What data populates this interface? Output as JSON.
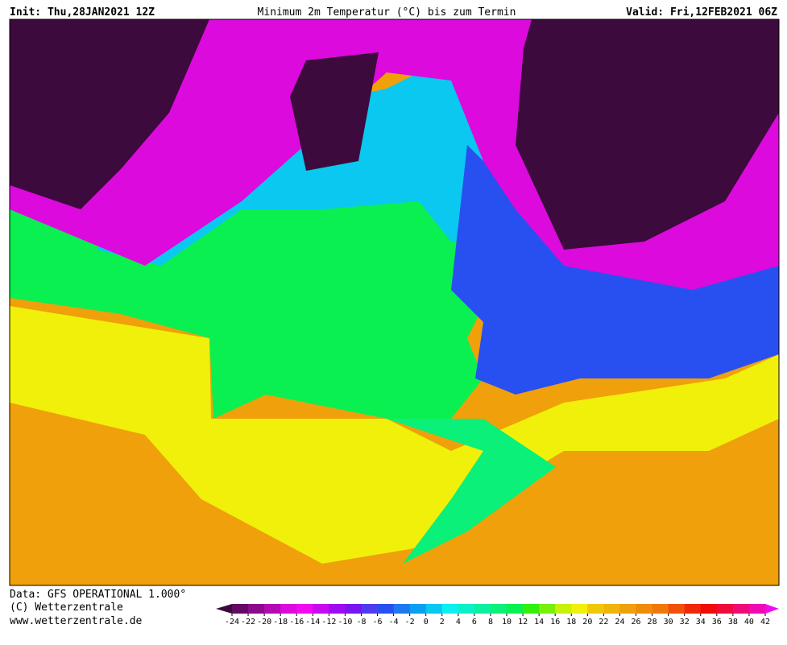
{
  "header": {
    "init": "Init: Thu,28JAN2021 12Z",
    "title": "Minimum 2m Temperatur (°C) bis zum Termin",
    "valid": "Valid: Fri,12FEB2021 06Z"
  },
  "footer": {
    "data": "Data: GFS OPERATIONAL 1.000°",
    "copyright": "(C) Wetterzentrale",
    "url": "www.wetterzentrale.de"
  },
  "colorbar": {
    "ticks": [
      -24,
      -22,
      -20,
      -18,
      -16,
      -14,
      -12,
      -10,
      -8,
      -6,
      -4,
      -2,
      0,
      2,
      4,
      6,
      8,
      10,
      12,
      14,
      16,
      18,
      20,
      22,
      24,
      26,
      28,
      30,
      32,
      34,
      36,
      38,
      40,
      42
    ],
    "colors": [
      "#3c0a3c",
      "#640a64",
      "#8c0a8c",
      "#b40ab4",
      "#dc0adc",
      "#f00af0",
      "#c80af0",
      "#a00af0",
      "#7814f0",
      "#503cf0",
      "#2850f0",
      "#1e78f0",
      "#0aa0f0",
      "#0ac8f0",
      "#0af0f0",
      "#0af0c8",
      "#0af0a0",
      "#0af078",
      "#0af050",
      "#32f00a",
      "#78f00a",
      "#c8f00a",
      "#f0f00a",
      "#f0c80a",
      "#f0b40a",
      "#f0a00a",
      "#f08c0a",
      "#f0780a",
      "#f0500a",
      "#f0280a",
      "#f00a0a",
      "#f00a3c",
      "#f00a78",
      "#f00ab4",
      "#f00af0"
    ]
  }
}
